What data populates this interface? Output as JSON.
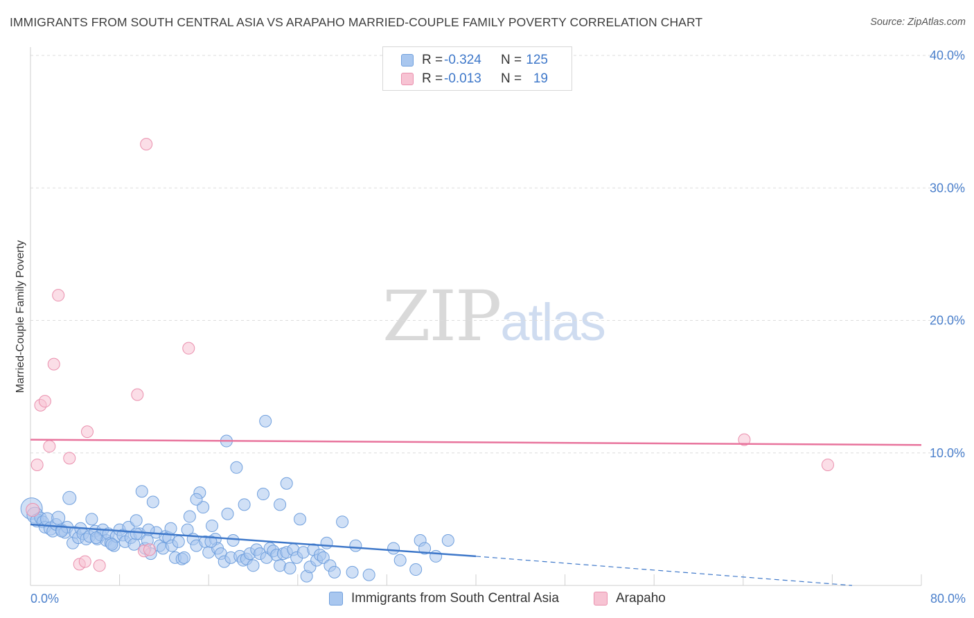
{
  "title": "IMMIGRANTS FROM SOUTH CENTRAL ASIA VS ARAPAHO MARRIED-COUPLE FAMILY POVERTY CORRELATION CHART",
  "source": "Source: ZipAtlas.com",
  "watermark": {
    "zip": "ZIP",
    "atlas": "atlas"
  },
  "legend": {
    "rows": [
      {
        "r_label": "R =",
        "r_value": "-0.324",
        "n_label": "N =",
        "n_value": "125",
        "color": "#a9c7ef",
        "border": "#6f9fdd"
      },
      {
        "r_label": "R =",
        "r_value": "-0.013",
        "n_label": "N =",
        "n_value": "19",
        "color": "#f7c3d3",
        "border": "#ea8fad"
      }
    ]
  },
  "bottom_legend": [
    {
      "label": "Immigrants from South Central Asia",
      "color": "#a9c7ef",
      "border": "#6f9fdd"
    },
    {
      "label": "Arapaho",
      "color": "#f7c3d3",
      "border": "#ea8fad"
    }
  ],
  "chart_data": {
    "type": "scatter",
    "title": "IMMIGRANTS FROM SOUTH CENTRAL ASIA VS ARAPAHO MARRIED-COUPLE FAMILY POVERTY CORRELATION CHART",
    "xlabel": "",
    "ylabel": "Married-Couple Family Poverty",
    "xlim": [
      0,
      80
    ],
    "ylim": [
      0,
      40
    ],
    "x_tick_labels": [
      {
        "value": 0,
        "label": "0.0%"
      },
      {
        "value": 80,
        "label": "80.0%"
      }
    ],
    "y_tick_labels": [
      {
        "value": 10,
        "label": "10.0%"
      },
      {
        "value": 20,
        "label": "20.0%"
      },
      {
        "value": 30,
        "label": "30.0%"
      },
      {
        "value": 40,
        "label": "40.0%"
      }
    ],
    "grid": true,
    "series": [
      {
        "name": "Immigrants from South Central Asia",
        "color": "#a9c7ef",
        "stroke": "#6f9fdd",
        "trend": {
          "x_start": 0,
          "y_start": 4.6,
          "x_end": 40,
          "y_end": 2.2,
          "dashed_to_x": 80,
          "dashed_to_y": 0.0,
          "color": "#3d77c9"
        },
        "points": [
          [
            0.1,
            5.8,
            14
          ],
          [
            0.4,
            5.3,
            10
          ],
          [
            0.6,
            4.9,
            8
          ],
          [
            0.9,
            5.1,
            7
          ],
          [
            1.1,
            4.8,
            7
          ],
          [
            1.3,
            4.4,
            7
          ],
          [
            1.5,
            5.0,
            8
          ],
          [
            1.8,
            4.3,
            8
          ],
          [
            2.0,
            4.1,
            7
          ],
          [
            2.3,
            4.6,
            7
          ],
          [
            2.5,
            5.1,
            8
          ],
          [
            2.8,
            4.2,
            7
          ],
          [
            3.1,
            4.0,
            7
          ],
          [
            3.3,
            4.4,
            7
          ],
          [
            3.5,
            6.6,
            8
          ],
          [
            3.8,
            3.2,
            7
          ],
          [
            4.0,
            4.0,
            7
          ],
          [
            4.3,
            3.6,
            7
          ],
          [
            4.5,
            4.3,
            7
          ],
          [
            4.7,
            3.9,
            7
          ],
          [
            5.0,
            3.5,
            7
          ],
          [
            5.3,
            3.7,
            7
          ],
          [
            5.5,
            5.0,
            7
          ],
          [
            5.8,
            4.1,
            7
          ],
          [
            6.0,
            3.5,
            7
          ],
          [
            6.3,
            3.8,
            7
          ],
          [
            6.5,
            4.2,
            7
          ],
          [
            6.8,
            3.4,
            7
          ],
          [
            7.0,
            3.9,
            7
          ],
          [
            7.2,
            3.2,
            7
          ],
          [
            7.5,
            3.0,
            7
          ],
          [
            7.7,
            3.7,
            7
          ],
          [
            8.0,
            4.2,
            7
          ],
          [
            8.3,
            3.8,
            7
          ],
          [
            8.5,
            3.3,
            7
          ],
          [
            8.8,
            4.4,
            7
          ],
          [
            9.0,
            3.6,
            7
          ],
          [
            9.3,
            3.1,
            7
          ],
          [
            9.5,
            4.9,
            7
          ],
          [
            9.8,
            3.9,
            7
          ],
          [
            10.0,
            7.1,
            7
          ],
          [
            10.3,
            2.8,
            7
          ],
          [
            10.5,
            3.4,
            7
          ],
          [
            10.8,
            2.4,
            7
          ],
          [
            11.0,
            6.3,
            7
          ],
          [
            11.3,
            4.0,
            7
          ],
          [
            11.6,
            3.0,
            7
          ],
          [
            11.9,
            2.8,
            7
          ],
          [
            12.1,
            3.7,
            7
          ],
          [
            12.4,
            3.6,
            7
          ],
          [
            12.7,
            3.0,
            7
          ],
          [
            13.0,
            2.1,
            7
          ],
          [
            13.3,
            3.3,
            7
          ],
          [
            13.6,
            2.0,
            7
          ],
          [
            13.8,
            2.1,
            7
          ],
          [
            14.1,
            4.2,
            7
          ],
          [
            14.3,
            5.2,
            7
          ],
          [
            14.6,
            3.5,
            7
          ],
          [
            14.9,
            3.0,
            7
          ],
          [
            15.2,
            7.0,
            7
          ],
          [
            15.5,
            5.9,
            7
          ],
          [
            15.7,
            3.3,
            7
          ],
          [
            16.0,
            2.5,
            7
          ],
          [
            16.3,
            4.5,
            7
          ],
          [
            16.6,
            3.5,
            7
          ],
          [
            16.8,
            2.8,
            7
          ],
          [
            17.1,
            2.4,
            7
          ],
          [
            17.4,
            1.8,
            7
          ],
          [
            17.7,
            5.4,
            7
          ],
          [
            18.0,
            2.1,
            7
          ],
          [
            18.2,
            3.4,
            7
          ],
          [
            18.5,
            8.9,
            7
          ],
          [
            18.8,
            2.2,
            7
          ],
          [
            19.1,
            1.9,
            7
          ],
          [
            19.4,
            2.0,
            7
          ],
          [
            19.7,
            2.4,
            7
          ],
          [
            20.0,
            1.5,
            7
          ],
          [
            20.3,
            2.7,
            7
          ],
          [
            20.6,
            2.4,
            7
          ],
          [
            20.9,
            6.9,
            7
          ],
          [
            21.2,
            2.1,
            7
          ],
          [
            21.5,
            2.8,
            7
          ],
          [
            21.8,
            2.6,
            7
          ],
          [
            22.1,
            2.3,
            7
          ],
          [
            22.4,
            1.5,
            7
          ],
          [
            22.7,
            2.4,
            7
          ],
          [
            23.0,
            2.5,
            7
          ],
          [
            23.3,
            1.3,
            7
          ],
          [
            23.6,
            2.7,
            7
          ],
          [
            23.9,
            2.1,
            7
          ],
          [
            24.2,
            5.0,
            7
          ],
          [
            24.5,
            2.5,
            7
          ],
          [
            24.8,
            0.7,
            7
          ],
          [
            25.1,
            1.4,
            7
          ],
          [
            25.4,
            2.7,
            7
          ],
          [
            25.7,
            1.9,
            7
          ],
          [
            26.0,
            2.3,
            7
          ],
          [
            26.3,
            2.1,
            7
          ],
          [
            26.6,
            3.2,
            7
          ],
          [
            26.9,
            1.5,
            7
          ],
          [
            27.3,
            1.0,
            7
          ],
          [
            28.0,
            4.8,
            7
          ],
          [
            28.9,
            1.0,
            7
          ],
          [
            29.2,
            3.0,
            7
          ],
          [
            30.4,
            0.8,
            7
          ],
          [
            32.6,
            2.8,
            7
          ],
          [
            33.2,
            1.9,
            7
          ],
          [
            34.6,
            1.2,
            7
          ],
          [
            35.0,
            3.4,
            7
          ],
          [
            35.4,
            2.8,
            7
          ],
          [
            36.4,
            2.2,
            7
          ],
          [
            37.5,
            3.4,
            7
          ],
          [
            17.6,
            10.9,
            7
          ],
          [
            21.1,
            12.4,
            7
          ],
          [
            22.4,
            6.1,
            7
          ],
          [
            23.0,
            7.7,
            7
          ],
          [
            19.2,
            6.1,
            7
          ],
          [
            14.9,
            6.5,
            7
          ],
          [
            12.6,
            4.3,
            7
          ],
          [
            16.2,
            3.3,
            7
          ],
          [
            9.5,
            3.9,
            7
          ],
          [
            10.6,
            4.2,
            7
          ],
          [
            7.3,
            3.1,
            7
          ],
          [
            5.9,
            3.6,
            7
          ],
          [
            2.8,
            4.1,
            7
          ]
        ]
      },
      {
        "name": "Arapaho",
        "color": "#f7c3d3",
        "stroke": "#ea8fad",
        "trend": {
          "x_start": 0,
          "y_start": 11.0,
          "x_end": 80,
          "y_end": 10.6,
          "color": "#e8739c"
        },
        "points": [
          [
            0.2,
            5.7,
            8
          ],
          [
            0.6,
            9.1,
            7
          ],
          [
            0.9,
            13.6,
            7
          ],
          [
            1.3,
            13.9,
            7
          ],
          [
            1.7,
            10.5,
            7
          ],
          [
            2.1,
            16.7,
            7
          ],
          [
            2.5,
            21.9,
            7
          ],
          [
            3.5,
            9.6,
            7
          ],
          [
            4.4,
            1.6,
            7
          ],
          [
            4.9,
            1.8,
            7
          ],
          [
            5.1,
            11.6,
            7
          ],
          [
            6.2,
            1.5,
            7
          ],
          [
            9.6,
            14.4,
            7
          ],
          [
            10.2,
            2.6,
            7
          ],
          [
            10.4,
            33.3,
            7
          ],
          [
            10.7,
            2.7,
            7
          ],
          [
            14.2,
            17.9,
            7
          ],
          [
            64.1,
            11.0,
            7
          ],
          [
            71.6,
            9.1,
            7
          ]
        ]
      }
    ]
  }
}
